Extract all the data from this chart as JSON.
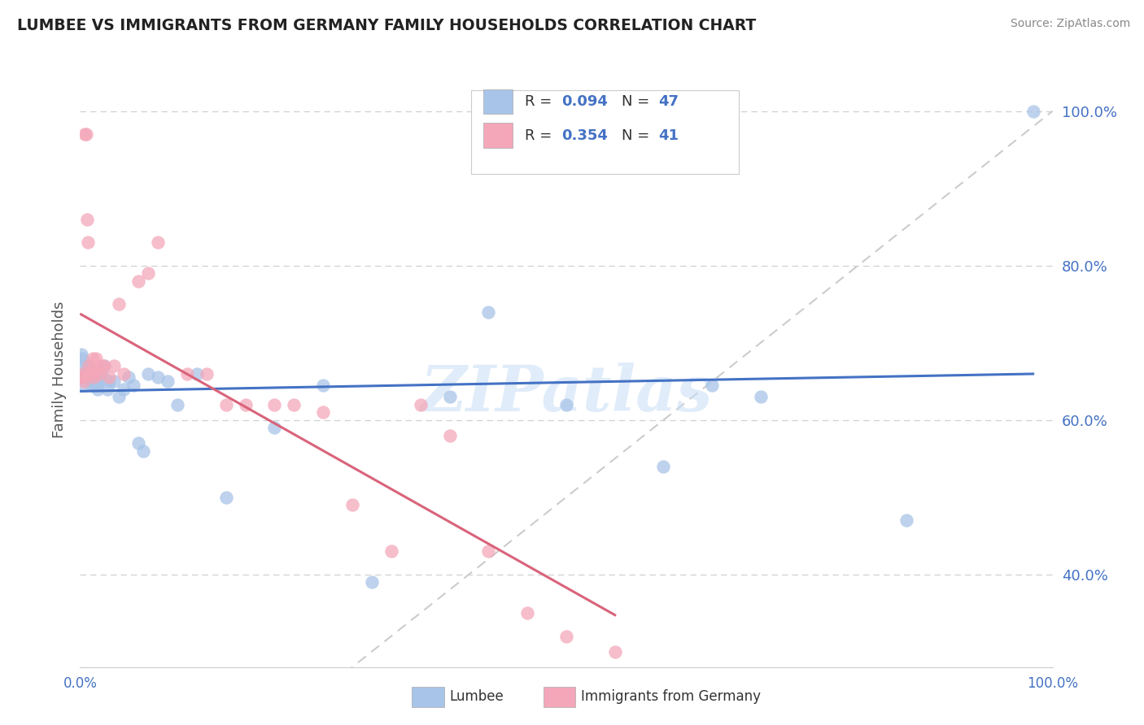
{
  "title": "LUMBEE VS IMMIGRANTS FROM GERMANY FAMILY HOUSEHOLDS CORRELATION CHART",
  "source": "Source: ZipAtlas.com",
  "ylabel": "Family Households",
  "xlim": [
    0.0,
    1.0
  ],
  "ylim": [
    0.28,
    1.05
  ],
  "yticks": [
    0.4,
    0.6,
    0.8,
    1.0
  ],
  "ytick_labels": [
    "40.0%",
    "60.0%",
    "80.0%",
    "100.0%"
  ],
  "r_lumbee": 0.094,
  "n_lumbee": 47,
  "r_germany": 0.354,
  "n_germany": 41,
  "lumbee_color": "#a8c4e8",
  "germany_color": "#f4a7b9",
  "lumbee_line_color": "#4472c4",
  "germany_line_color": "#d9637a",
  "diag_line_color": "#cccccc",
  "background_color": "#ffffff",
  "watermark": "ZIPatlas",
  "lumbee_x": [
    0.001,
    0.002,
    0.003,
    0.004,
    0.005,
    0.006,
    0.007,
    0.008,
    0.009,
    0.01,
    0.011,
    0.012,
    0.013,
    0.014,
    0.015,
    0.016,
    0.017,
    0.018,
    0.02,
    0.022,
    0.025,
    0.028,
    0.03,
    0.035,
    0.04,
    0.045,
    0.05,
    0.055,
    0.06,
    0.065,
    0.07,
    0.08,
    0.09,
    0.1,
    0.12,
    0.15,
    0.2,
    0.25,
    0.3,
    0.38,
    0.42,
    0.5,
    0.6,
    0.65,
    0.7,
    0.85,
    0.98
  ],
  "lumbee_y": [
    0.685,
    0.68,
    0.655,
    0.67,
    0.645,
    0.66,
    0.67,
    0.66,
    0.67,
    0.66,
    0.655,
    0.645,
    0.65,
    0.65,
    0.655,
    0.645,
    0.65,
    0.64,
    0.65,
    0.66,
    0.67,
    0.64,
    0.65,
    0.65,
    0.63,
    0.64,
    0.655,
    0.645,
    0.57,
    0.56,
    0.66,
    0.655,
    0.65,
    0.62,
    0.66,
    0.5,
    0.59,
    0.645,
    0.39,
    0.63,
    0.74,
    0.62,
    0.54,
    0.645,
    0.63,
    0.47,
    1.0
  ],
  "germany_x": [
    0.001,
    0.002,
    0.003,
    0.004,
    0.005,
    0.006,
    0.007,
    0.008,
    0.009,
    0.01,
    0.011,
    0.012,
    0.013,
    0.014,
    0.016,
    0.018,
    0.02,
    0.022,
    0.025,
    0.03,
    0.035,
    0.04,
    0.045,
    0.06,
    0.07,
    0.08,
    0.11,
    0.13,
    0.15,
    0.17,
    0.2,
    0.22,
    0.25,
    0.28,
    0.32,
    0.35,
    0.38,
    0.42,
    0.46,
    0.5,
    0.55
  ],
  "germany_y": [
    0.655,
    0.66,
    0.655,
    0.65,
    0.97,
    0.97,
    0.86,
    0.83,
    0.67,
    0.66,
    0.665,
    0.66,
    0.68,
    0.655,
    0.68,
    0.665,
    0.66,
    0.67,
    0.67,
    0.655,
    0.67,
    0.75,
    0.66,
    0.78,
    0.79,
    0.83,
    0.66,
    0.66,
    0.62,
    0.62,
    0.62,
    0.62,
    0.61,
    0.49,
    0.43,
    0.62,
    0.58,
    0.43,
    0.35,
    0.32,
    0.3
  ]
}
